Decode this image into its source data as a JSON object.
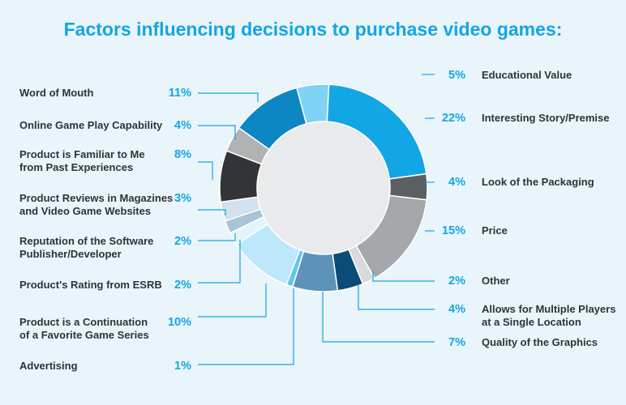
{
  "colors": {
    "background": "#eaf4fb",
    "accent": "#12a6e4",
    "text": "#2e3438",
    "leader": "#12a6e4"
  },
  "chart_data": {
    "type": "pie",
    "donut": true,
    "title": "Factors influencing decisions to purchase video games:",
    "unit": "%",
    "slices": [
      {
        "label": [
          "Educational Value"
        ],
        "pct_text": "5%",
        "value": 5,
        "color": "#7fd3f5"
      },
      {
        "label": [
          "Interesting Story/Premise"
        ],
        "pct_text": "22%",
        "value": 22,
        "color": "#13a6e4"
      },
      {
        "label": [
          "Look of the Packaging"
        ],
        "pct_text": "4%",
        "value": 4,
        "color": "#5c5f62"
      },
      {
        "label": [
          "Price"
        ],
        "pct_text": "15%",
        "value": 15,
        "color": "#a5a8ab"
      },
      {
        "label": [
          "Other"
        ],
        "pct_text": "2%",
        "value": 2,
        "color": "#d8dadc"
      },
      {
        "label": [
          "Allows for Multiple Players",
          "at a Single Location"
        ],
        "pct_text": "4%",
        "value": 4,
        "color": "#0b4b78"
      },
      {
        "label": [
          "Quality of the Graphics"
        ],
        "pct_text": "7%",
        "value": 7,
        "color": "#5d93b9"
      },
      {
        "label": [
          "Advertising"
        ],
        "pct_text": "1%",
        "value": 1,
        "color": "#5fc8f1"
      },
      {
        "label": [
          "Product is a Continuation",
          "of a Favorite Game Series"
        ],
        "pct_text": "10%",
        "value": 10,
        "color": "#bde7fa"
      },
      {
        "label": [
          "Product's Rating from ESRB"
        ],
        "pct_text": "2%",
        "value": 2,
        "color": "#e3f4fc"
      },
      {
        "label": [
          "Reputation of the Software",
          "Publisher/Developer"
        ],
        "pct_text": "2%",
        "value": 2,
        "color": "#aac3d7"
      },
      {
        "label": [
          "Product Reviews in Magazines",
          "and Video Game Websites"
        ],
        "pct_text": "3%",
        "value": 3,
        "color": "#d3e1ec"
      },
      {
        "label": [
          "Product is Familiar to Me",
          "from Past Experiences"
        ],
        "pct_text": "8%",
        "value": 8,
        "color": "#333435"
      },
      {
        "label": [
          "Online Game Play Capability"
        ],
        "pct_text": "4%",
        "value": 4,
        "color": "#b0b2b4"
      },
      {
        "label": [
          "Word of Mouth"
        ],
        "pct_text": "11%",
        "value": 11,
        "color": "#0d86c4"
      }
    ]
  }
}
